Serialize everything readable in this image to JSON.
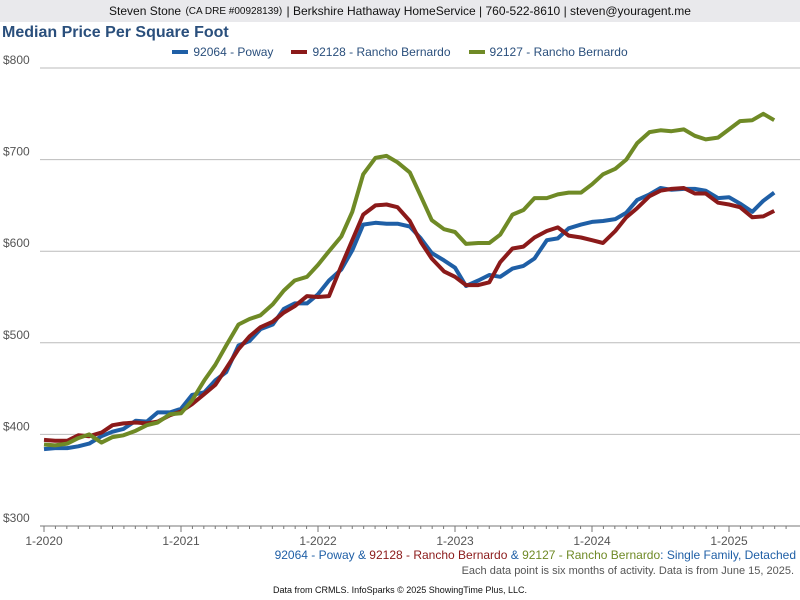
{
  "header": {
    "name": "Steven Stone",
    "license": "(CA DRE #00928139)",
    "rest": "| Berkshire Hathaway HomeService | 760-522-8610 | steven@youragent.me"
  },
  "subtitle": {
    "s1": "92064 - Poway",
    "sep1": " & ",
    "s2": "92128 - Rancho Bernardo",
    "sep2": " & ",
    "s3": "92127 - Rancho Bernardo",
    "suffix": ": Single Family, Detached"
  },
  "note": "Each data point is six months of activity. Data is from June 15, 2025.",
  "footer": "Data from CRMLS. InfoSparks © 2025 ShowingTime Plus, LLC.",
  "colors": {
    "poway": "#1f5fa6",
    "rb128": "#8b1a1a",
    "rb127": "#6f8a26",
    "grid": "#bbbbbb",
    "axis_text": "#555555"
  },
  "chart_data": {
    "type": "line",
    "title": "Median Price Per Square Foot",
    "ylim": [
      300,
      800
    ],
    "yticks": [
      300,
      400,
      500,
      600,
      700,
      800
    ],
    "ytick_labels": [
      "$300",
      "$400",
      "$500",
      "$600",
      "$700",
      "$800"
    ],
    "xlim": [
      2020.0,
      2025.42
    ],
    "xticks": [
      2020,
      2021,
      2022,
      2023,
      2024,
      2025
    ],
    "xtick_labels": [
      "1-2020",
      "1-2021",
      "1-2022",
      "1-2023",
      "1-2024",
      "1-2025"
    ],
    "legend_position": "top-center",
    "series": [
      {
        "name": "92064 - Poway",
        "points": [
          [
            2020.0,
            384
          ],
          [
            2020.08,
            385
          ],
          [
            2020.17,
            385
          ],
          [
            2020.25,
            387
          ],
          [
            2020.33,
            390
          ],
          [
            2020.42,
            398
          ],
          [
            2020.5,
            403
          ],
          [
            2020.58,
            406
          ],
          [
            2020.67,
            415
          ],
          [
            2020.75,
            414
          ],
          [
            2020.83,
            424
          ],
          [
            2020.92,
            424
          ],
          [
            2021.0,
            428
          ],
          [
            2021.08,
            443
          ],
          [
            2021.17,
            446
          ],
          [
            2021.25,
            459
          ],
          [
            2021.33,
            468
          ],
          [
            2021.42,
            497
          ],
          [
            2021.5,
            502
          ],
          [
            2021.58,
            515
          ],
          [
            2021.67,
            520
          ],
          [
            2021.75,
            537
          ],
          [
            2021.83,
            543
          ],
          [
            2021.92,
            543
          ],
          [
            2022.0,
            553
          ],
          [
            2022.08,
            568
          ],
          [
            2022.17,
            580
          ],
          [
            2022.25,
            601
          ],
          [
            2022.33,
            629
          ],
          [
            2022.42,
            631
          ],
          [
            2022.5,
            630
          ],
          [
            2022.58,
            630
          ],
          [
            2022.67,
            627
          ],
          [
            2022.75,
            614
          ],
          [
            2022.83,
            598
          ],
          [
            2022.92,
            590
          ],
          [
            2023.0,
            582
          ],
          [
            2023.08,
            562
          ],
          [
            2023.17,
            568
          ],
          [
            2023.25,
            574
          ],
          [
            2023.33,
            572
          ],
          [
            2023.42,
            581
          ],
          [
            2023.5,
            584
          ],
          [
            2023.58,
            592
          ],
          [
            2023.67,
            612
          ],
          [
            2023.75,
            614
          ],
          [
            2023.83,
            625
          ],
          [
            2023.92,
            629
          ],
          [
            2024.0,
            632
          ],
          [
            2024.08,
            633
          ],
          [
            2024.17,
            635
          ],
          [
            2024.25,
            642
          ],
          [
            2024.33,
            656
          ],
          [
            2024.42,
            662
          ],
          [
            2024.5,
            669
          ],
          [
            2024.58,
            667
          ],
          [
            2024.67,
            668
          ],
          [
            2024.75,
            668
          ],
          [
            2024.83,
            666
          ],
          [
            2024.92,
            658
          ],
          [
            2025.0,
            659
          ],
          [
            2025.08,
            652
          ],
          [
            2025.17,
            643
          ],
          [
            2025.25,
            655
          ],
          [
            2025.33,
            664
          ]
        ]
      },
      {
        "name": "92128 - Rancho Bernardo",
        "points": [
          [
            2020.0,
            394
          ],
          [
            2020.08,
            393
          ],
          [
            2020.17,
            393
          ],
          [
            2020.25,
            399
          ],
          [
            2020.33,
            398
          ],
          [
            2020.42,
            402
          ],
          [
            2020.5,
            410
          ],
          [
            2020.58,
            412
          ],
          [
            2020.67,
            413
          ],
          [
            2020.75,
            412
          ],
          [
            2020.83,
            414
          ],
          [
            2020.92,
            421
          ],
          [
            2021.0,
            425
          ],
          [
            2021.08,
            433
          ],
          [
            2021.17,
            444
          ],
          [
            2021.25,
            454
          ],
          [
            2021.33,
            472
          ],
          [
            2021.42,
            493
          ],
          [
            2021.5,
            507
          ],
          [
            2021.58,
            517
          ],
          [
            2021.67,
            523
          ],
          [
            2021.75,
            533
          ],
          [
            2021.83,
            540
          ],
          [
            2021.92,
            551
          ],
          [
            2022.0,
            550
          ],
          [
            2022.08,
            551
          ],
          [
            2022.17,
            584
          ],
          [
            2022.25,
            612
          ],
          [
            2022.33,
            640
          ],
          [
            2022.42,
            650
          ],
          [
            2022.5,
            651
          ],
          [
            2022.58,
            648
          ],
          [
            2022.67,
            633
          ],
          [
            2022.75,
            610
          ],
          [
            2022.83,
            592
          ],
          [
            2022.92,
            578
          ],
          [
            2023.0,
            572
          ],
          [
            2023.08,
            563
          ],
          [
            2023.17,
            563
          ],
          [
            2023.25,
            566
          ],
          [
            2023.33,
            588
          ],
          [
            2023.42,
            603
          ],
          [
            2023.5,
            605
          ],
          [
            2023.58,
            615
          ],
          [
            2023.67,
            622
          ],
          [
            2023.75,
            626
          ],
          [
            2023.83,
            617
          ],
          [
            2023.92,
            615
          ],
          [
            2024.0,
            612
          ],
          [
            2024.08,
            609
          ],
          [
            2024.17,
            622
          ],
          [
            2024.25,
            637
          ],
          [
            2024.33,
            647
          ],
          [
            2024.42,
            660
          ],
          [
            2024.5,
            666
          ],
          [
            2024.58,
            668
          ],
          [
            2024.67,
            669
          ],
          [
            2024.75,
            663
          ],
          [
            2024.83,
            663
          ],
          [
            2024.92,
            653
          ],
          [
            2025.0,
            651
          ],
          [
            2025.08,
            648
          ],
          [
            2025.17,
            637
          ],
          [
            2025.25,
            638
          ],
          [
            2025.33,
            644
          ]
        ]
      },
      {
        "name": "92127 - Rancho Bernardo",
        "points": [
          [
            2020.0,
            389
          ],
          [
            2020.08,
            388
          ],
          [
            2020.17,
            390
          ],
          [
            2020.25,
            396
          ],
          [
            2020.33,
            400
          ],
          [
            2020.42,
            391
          ],
          [
            2020.5,
            397
          ],
          [
            2020.58,
            399
          ],
          [
            2020.67,
            404
          ],
          [
            2020.75,
            410
          ],
          [
            2020.83,
            413
          ],
          [
            2020.92,
            422
          ],
          [
            2021.0,
            423
          ],
          [
            2021.08,
            437
          ],
          [
            2021.17,
            459
          ],
          [
            2021.25,
            476
          ],
          [
            2021.33,
            497
          ],
          [
            2021.42,
            520
          ],
          [
            2021.5,
            526
          ],
          [
            2021.58,
            530
          ],
          [
            2021.67,
            542
          ],
          [
            2021.75,
            557
          ],
          [
            2021.83,
            568
          ],
          [
            2021.92,
            572
          ],
          [
            2022.0,
            585
          ],
          [
            2022.08,
            600
          ],
          [
            2022.17,
            616
          ],
          [
            2022.25,
            643
          ],
          [
            2022.33,
            684
          ],
          [
            2022.42,
            702
          ],
          [
            2022.5,
            704
          ],
          [
            2022.58,
            697
          ],
          [
            2022.67,
            686
          ],
          [
            2022.75,
            660
          ],
          [
            2022.83,
            634
          ],
          [
            2022.92,
            624
          ],
          [
            2023.0,
            621
          ],
          [
            2023.08,
            608
          ],
          [
            2023.17,
            609
          ],
          [
            2023.25,
            609
          ],
          [
            2023.33,
            618
          ],
          [
            2023.42,
            640
          ],
          [
            2023.5,
            645
          ],
          [
            2023.58,
            658
          ],
          [
            2023.67,
            658
          ],
          [
            2023.75,
            662
          ],
          [
            2023.83,
            664
          ],
          [
            2023.92,
            664
          ],
          [
            2024.0,
            673
          ],
          [
            2024.08,
            684
          ],
          [
            2024.17,
            690
          ],
          [
            2024.25,
            700
          ],
          [
            2024.33,
            718
          ],
          [
            2024.42,
            730
          ],
          [
            2024.5,
            732
          ],
          [
            2024.58,
            731
          ],
          [
            2024.67,
            733
          ],
          [
            2024.75,
            726
          ],
          [
            2024.83,
            722
          ],
          [
            2024.92,
            724
          ],
          [
            2025.0,
            733
          ],
          [
            2025.08,
            742
          ],
          [
            2025.17,
            743
          ],
          [
            2025.25,
            750
          ],
          [
            2025.33,
            743
          ]
        ]
      }
    ]
  }
}
